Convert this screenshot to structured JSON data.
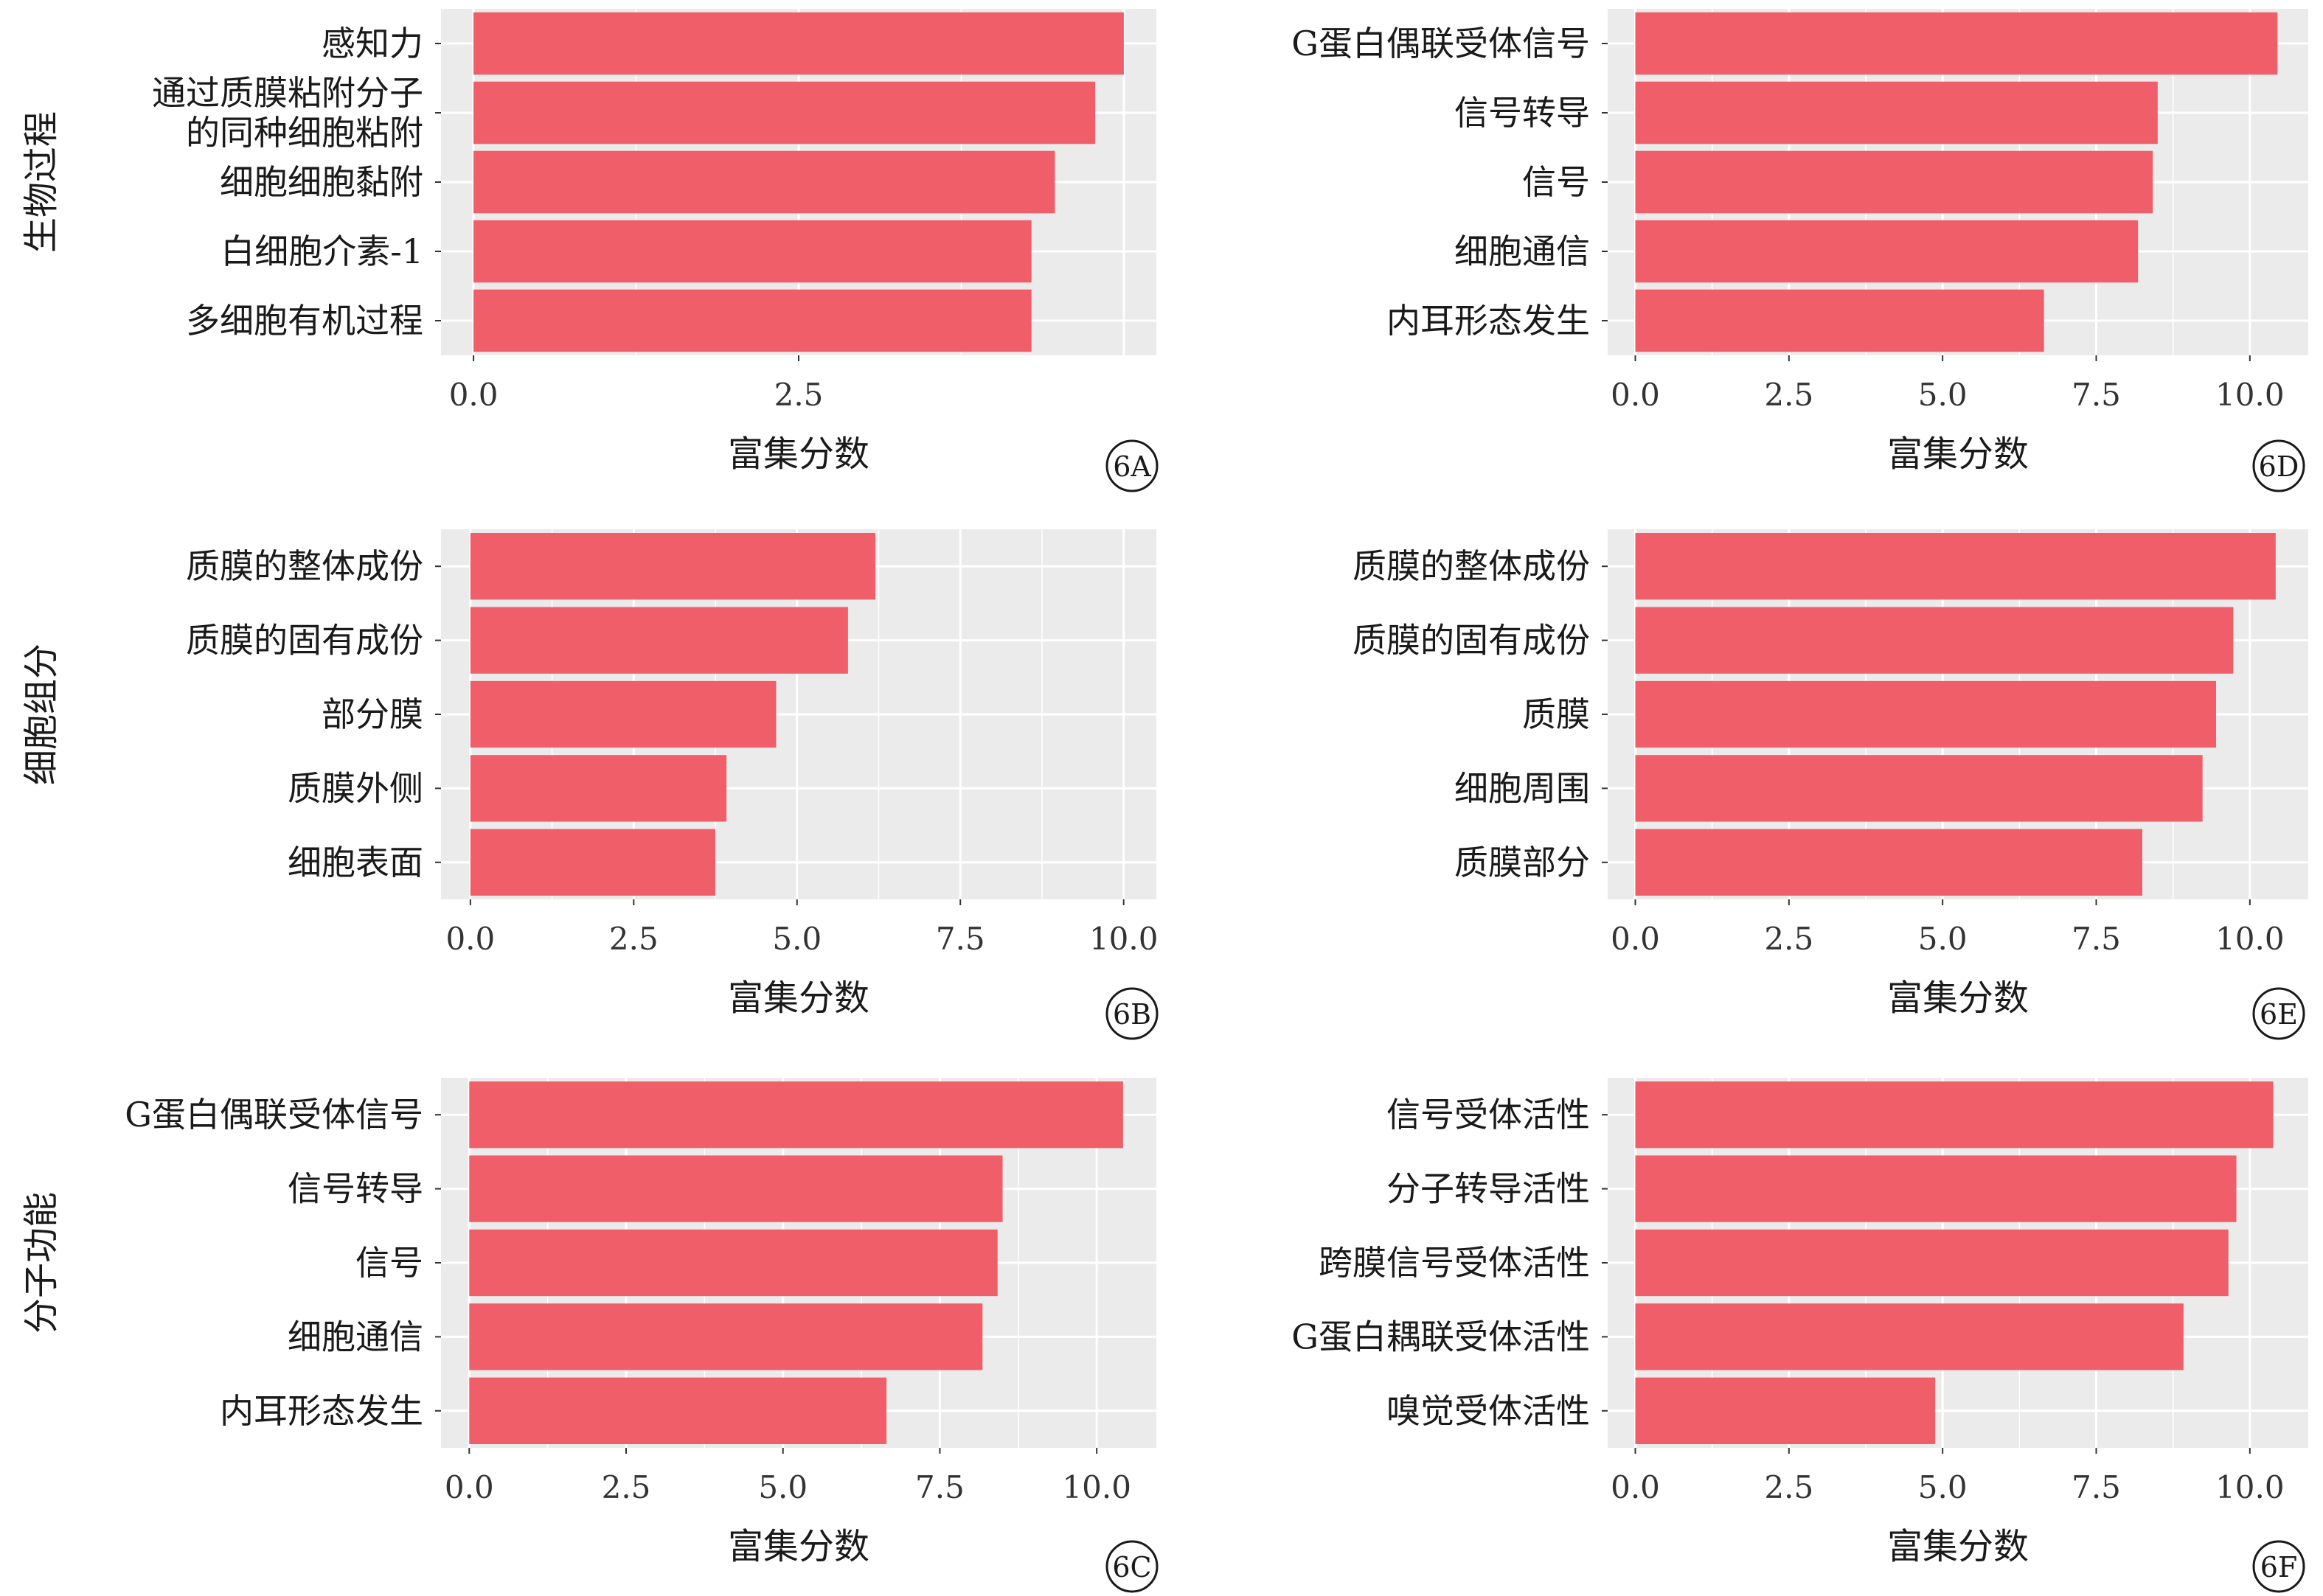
{
  "figure": {
    "bar_color": "#EF5E69",
    "panel_bg": "#EBEBEB",
    "grid_color": "#FFFFFF",
    "row_labels": [
      "生物过程",
      "细胞组分",
      "分子功能"
    ]
  },
  "chart_data": [
    {
      "panel": "6A",
      "type": "bar",
      "orientation": "horizontal",
      "row_label": "生物过程",
      "categories": [
        "感知力",
        [
          "通过质膜粘附分子",
          "的同种细胞粘附"
        ],
        "细胞细胞黏附",
        "白细胞介素-1",
        "多细胞有机过程"
      ],
      "values": [
        5.0,
        4.78,
        4.47,
        4.29,
        4.29
      ],
      "xlabel": "富集分数",
      "xlim": [
        -0.25,
        5.25
      ],
      "xticks": [
        0.0,
        2.5
      ],
      "xtick_labels": [
        "0.0",
        "2.5"
      ],
      "grid": true
    },
    {
      "panel": "6D",
      "type": "bar",
      "orientation": "horizontal",
      "row_label": "",
      "categories": [
        "G蛋白偶联受体信号",
        "信号转导",
        "信号",
        "细胞通信",
        "内耳形态发生"
      ],
      "values": [
        10.45,
        8.5,
        8.42,
        8.18,
        6.65
      ],
      "xlabel": "富集分数",
      "xlim": [
        -0.45,
        10.95
      ],
      "xticks": [
        0.0,
        2.5,
        5.0,
        7.5,
        10.0
      ],
      "xtick_labels": [
        "0.0",
        "2.5",
        "5.0",
        "7.5",
        "10.0"
      ],
      "grid": true
    },
    {
      "panel": "6B",
      "type": "bar",
      "orientation": "horizontal",
      "row_label": "细胞组分",
      "categories": [
        "质膜的整体成份",
        "质膜的固有成份",
        "部分膜",
        "质膜外侧",
        "细胞表面"
      ],
      "values": [
        6.2,
        5.78,
        4.68,
        3.92,
        3.75
      ],
      "xlabel": "富集分数",
      "xlim": [
        -0.45,
        10.5
      ],
      "xticks": [
        0.0,
        2.5,
        5.0,
        7.5,
        10.0
      ],
      "xtick_labels": [
        "0.0",
        "2.5",
        "5.0",
        "7.5",
        "10.0"
      ],
      "grid": true
    },
    {
      "panel": "6E",
      "type": "bar",
      "orientation": "horizontal",
      "row_label": "",
      "categories": [
        "质膜的整体成份",
        "质膜的固有成份",
        "质膜",
        "细胞周围",
        "质膜部分"
      ],
      "values": [
        10.42,
        9.73,
        9.45,
        9.23,
        8.25
      ],
      "xlabel": "富集分数",
      "xlim": [
        -0.45,
        10.95
      ],
      "xticks": [
        0.0,
        2.5,
        5.0,
        7.5,
        10.0
      ],
      "xtick_labels": [
        "0.0",
        "2.5",
        "5.0",
        "7.5",
        "10.0"
      ],
      "grid": true
    },
    {
      "panel": "6C",
      "type": "bar",
      "orientation": "horizontal",
      "row_label": "分子功能",
      "categories": [
        "G蛋白偶联受体信号",
        "信号转导",
        "信号",
        "细胞通信",
        "内耳形态发生"
      ],
      "values": [
        10.42,
        8.5,
        8.42,
        8.18,
        6.65
      ],
      "xlabel": "富集分数",
      "xlim": [
        -0.45,
        10.95
      ],
      "xticks": [
        0.0,
        2.5,
        5.0,
        7.5,
        10.0
      ],
      "xtick_labels": [
        "0.0",
        "2.5",
        "5.0",
        "7.5",
        "10.0"
      ],
      "grid": true
    },
    {
      "panel": "6F",
      "type": "bar",
      "orientation": "horizontal",
      "row_label": "",
      "categories": [
        "信号受体活性",
        "分子转导活性",
        "跨膜信号受体活性",
        "G蛋白耦联受体活性",
        "嗅觉受体活性"
      ],
      "values": [
        10.38,
        9.78,
        9.65,
        8.92,
        4.88
      ],
      "xlabel": "富集分数",
      "xlim": [
        -0.45,
        10.95
      ],
      "xticks": [
        0.0,
        2.5,
        5.0,
        7.5,
        10.0
      ],
      "xtick_labels": [
        "0.0",
        "2.5",
        "5.0",
        "7.5",
        "10.0"
      ],
      "grid": true
    }
  ]
}
